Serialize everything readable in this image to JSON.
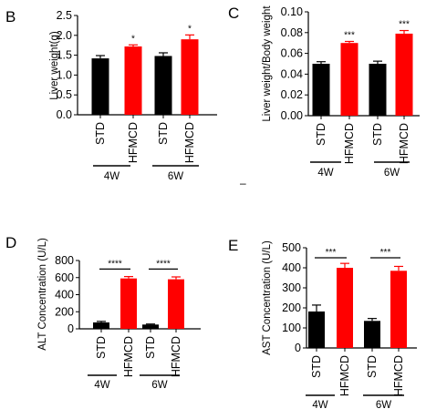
{
  "figure": {
    "stray_mark": "–"
  },
  "chart_data": [
    {
      "panel": "B",
      "type": "bar",
      "ylabel": "Liver weight(g)",
      "ylim": [
        0,
        2.5
      ],
      "yticks": [
        "0.0",
        "0.5",
        "1.0",
        "1.5",
        "2.0",
        "2.5"
      ],
      "yticks_values": [
        0,
        0.5,
        1.0,
        1.5,
        2.0,
        2.5
      ],
      "categories": [
        "STD",
        "HFMCD",
        "STD",
        "HFMCD"
      ],
      "values": [
        1.42,
        1.72,
        1.48,
        1.9
      ],
      "errors": [
        0.07,
        0.04,
        0.08,
        0.11
      ],
      "colors": [
        "#000000",
        "#ff0000",
        "#000000",
        "#ff0000"
      ],
      "groups": [
        "4W",
        "6W"
      ],
      "significance": [
        {
          "bar": 1,
          "label": "*",
          "type": "star"
        },
        {
          "bar": 3,
          "label": "*",
          "type": "star"
        }
      ]
    },
    {
      "panel": "C",
      "type": "bar",
      "ylabel": "Liver weight/Body weight",
      "ylim": [
        0,
        0.1
      ],
      "yticks": [
        "0.00",
        "0.02",
        "0.04",
        "0.06",
        "0.08",
        "0.10"
      ],
      "yticks_values": [
        0,
        0.02,
        0.04,
        0.06,
        0.08,
        0.1
      ],
      "categories": [
        "STD",
        "HFMCD",
        "STD",
        "HFMCD"
      ],
      "values": [
        0.05,
        0.07,
        0.05,
        0.079
      ],
      "errors": [
        0.002,
        0.0015,
        0.0025,
        0.003
      ],
      "colors": [
        "#000000",
        "#ff0000",
        "#000000",
        "#ff0000"
      ],
      "groups": [
        "4W",
        "6W"
      ],
      "significance": [
        {
          "bar": 1,
          "label": "***",
          "type": "star"
        },
        {
          "bar": 3,
          "label": "***",
          "type": "star"
        }
      ]
    },
    {
      "panel": "D",
      "type": "bar",
      "ylabel": "ALT Concentration (U/L)",
      "ylim": [
        0,
        800
      ],
      "yticks": [
        "0",
        "200",
        "400",
        "600",
        "800"
      ],
      "yticks_values": [
        0,
        200,
        400,
        600,
        800
      ],
      "categories": [
        "STD",
        "HFMCD",
        "STD",
        "HFMCD"
      ],
      "values": [
        75,
        590,
        50,
        580
      ],
      "errors": [
        12,
        22,
        6,
        28
      ],
      "colors": [
        "#000000",
        "#ff0000",
        "#000000",
        "#ff0000"
      ],
      "groups": [
        "4W",
        "6W"
      ],
      "significance": [
        {
          "from": 0,
          "to": 1,
          "label": "****",
          "y": 700,
          "type": "bracket"
        },
        {
          "from": 2,
          "to": 3,
          "label": "****",
          "y": 700,
          "type": "bracket"
        }
      ]
    },
    {
      "panel": "E",
      "type": "bar",
      "ylabel": "AST Concentration (U/L)",
      "ylim": [
        0,
        500
      ],
      "yticks": [
        "0",
        "100",
        "200",
        "300",
        "400",
        "500"
      ],
      "yticks_values": [
        0,
        100,
        200,
        300,
        400,
        500
      ],
      "categories": [
        "STD",
        "HFMCD",
        "STD",
        "HFMCD"
      ],
      "values": [
        182,
        400,
        135,
        385
      ],
      "errors": [
        32,
        22,
        12,
        22
      ],
      "colors": [
        "#000000",
        "#ff0000",
        "#000000",
        "#ff0000"
      ],
      "groups": [
        "4W",
        "6W"
      ],
      "significance": [
        {
          "from": 0,
          "to": 1,
          "label": "***",
          "y": 450,
          "type": "bracket"
        },
        {
          "from": 2,
          "to": 3,
          "label": "***",
          "y": 450,
          "type": "bracket"
        }
      ]
    }
  ]
}
